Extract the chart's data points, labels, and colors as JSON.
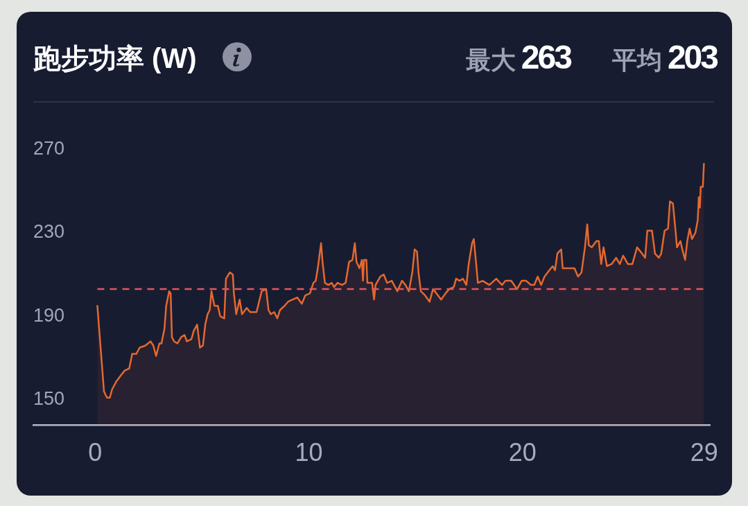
{
  "chart_data": {
    "type": "area",
    "title": "跑步功率 (W)",
    "annotations": [
      "最大 263",
      "平均 203"
    ],
    "x": [
      0.1,
      0.41,
      0.55,
      0.68,
      0.79,
      1.0,
      1.22,
      1.38,
      1.59,
      1.73,
      1.92,
      2.08,
      2.35,
      2.59,
      2.72,
      2.85,
      3.0,
      3.1,
      3.24,
      3.32,
      3.46,
      3.53,
      3.59,
      3.69,
      3.85,
      4.02,
      4.18,
      4.29,
      4.5,
      4.61,
      4.77,
      4.9,
      5.04,
      5.15,
      5.26,
      5.36,
      5.44,
      5.58,
      5.74,
      5.85,
      6.04,
      6.12,
      6.3,
      6.44,
      6.49,
      6.6,
      6.76,
      6.87,
      7.09,
      7.25,
      7.55,
      7.79,
      8.0,
      8.11,
      8.22,
      8.38,
      8.52,
      8.65,
      8.86,
      9.03,
      9.24,
      9.46,
      9.67,
      9.83,
      10.05,
      10.21,
      10.32,
      10.43,
      10.57,
      10.64,
      10.75,
      10.91,
      11.07,
      11.18,
      11.34,
      11.55,
      11.72,
      11.88,
      12.04,
      12.15,
      12.23,
      12.37,
      12.48,
      12.53,
      12.58,
      12.69,
      12.74,
      12.96,
      13.05,
      13.12,
      13.34,
      13.5,
      13.66,
      13.88,
      14.14,
      14.36,
      14.52,
      14.68,
      14.84,
      14.95,
      15.06,
      15.13,
      15.24,
      15.44,
      15.65,
      15.81,
      15.97,
      16.19,
      16.4,
      16.56,
      16.78,
      16.89,
      17.05,
      17.21,
      17.37,
      17.48,
      17.64,
      17.72,
      17.83,
      17.91,
      18.13,
      18.45,
      18.77,
      19.04,
      19.2,
      19.47,
      19.74,
      19.96,
      20.17,
      20.39,
      20.55,
      20.71,
      20.87,
      21.03,
      21.25,
      21.41,
      21.52,
      21.63,
      21.71,
      21.81,
      21.88,
      22.06,
      22.22,
      22.43,
      22.6,
      22.76,
      22.92,
      23.03,
      23.1,
      23.24,
      23.46,
      23.57,
      23.68,
      23.79,
      23.95,
      24.17,
      24.38,
      24.55,
      24.71,
      24.93,
      25.14,
      25.36,
      25.52,
      25.74,
      25.84,
      26.06,
      26.2,
      26.38,
      26.49,
      26.65,
      26.81,
      26.9,
      27.04,
      27.17,
      27.23,
      27.39,
      27.48,
      27.61,
      27.71,
      27.82,
      27.93,
      28.09,
      28.2,
      28.25,
      28.3,
      28.34,
      28.44,
      28.49
    ],
    "values": [
      195,
      154,
      151,
      151,
      155,
      159,
      162,
      164,
      165,
      172,
      172,
      175,
      176,
      178,
      176,
      171,
      177,
      177,
      184,
      195,
      202,
      201,
      180,
      178,
      177,
      180,
      181,
      178,
      179,
      183,
      186,
      175,
      176,
      186,
      191,
      193,
      202,
      195,
      195,
      190,
      189,
      208,
      211,
      210,
      201,
      191,
      198,
      191,
      194,
      192,
      192,
      202,
      203,
      193,
      191,
      192,
      189,
      193,
      195,
      197,
      198,
      199,
      196,
      200,
      201,
      206,
      207,
      214,
      225,
      216,
      206,
      205,
      206,
      204,
      206,
      205,
      206,
      216,
      217,
      225,
      216,
      213,
      217,
      207,
      217,
      217,
      206,
      206,
      198,
      205,
      209,
      210,
      206,
      207,
      202,
      207,
      205,
      202,
      211,
      222,
      221,
      211,
      202,
      200,
      197,
      203,
      201,
      198,
      201,
      203,
      204,
      208,
      207,
      208,
      205,
      215,
      225,
      227,
      215,
      206,
      207,
      205,
      208,
      205,
      207,
      207,
      203,
      207,
      207,
      205,
      205,
      209,
      205,
      209,
      212,
      214,
      212,
      220,
      221,
      222,
      213,
      213,
      213,
      213,
      209,
      211,
      223,
      234,
      224,
      223,
      226,
      226,
      215,
      223,
      214,
      215,
      218,
      215,
      219,
      215,
      215,
      223,
      221,
      218,
      231,
      231,
      220,
      218,
      220,
      231,
      232,
      245,
      244,
      230,
      223,
      226,
      222,
      217,
      226,
      232,
      227,
      230,
      236,
      247,
      242,
      252,
      252,
      263
    ],
    "color": "#e4692f",
    "xlim": [
      -2.9,
      28.8
    ],
    "xticks": [
      0,
      10,
      20,
      {
        "value": 28.5,
        "label": "29"
      }
    ],
    "ylim": [
      138,
      285
    ],
    "yticks": [
      150,
      190,
      230,
      270
    ],
    "ref_lines": [
      {
        "axis": "y",
        "value": 203,
        "color": "#e2575f",
        "line_style": "dashed"
      }
    ]
  }
}
